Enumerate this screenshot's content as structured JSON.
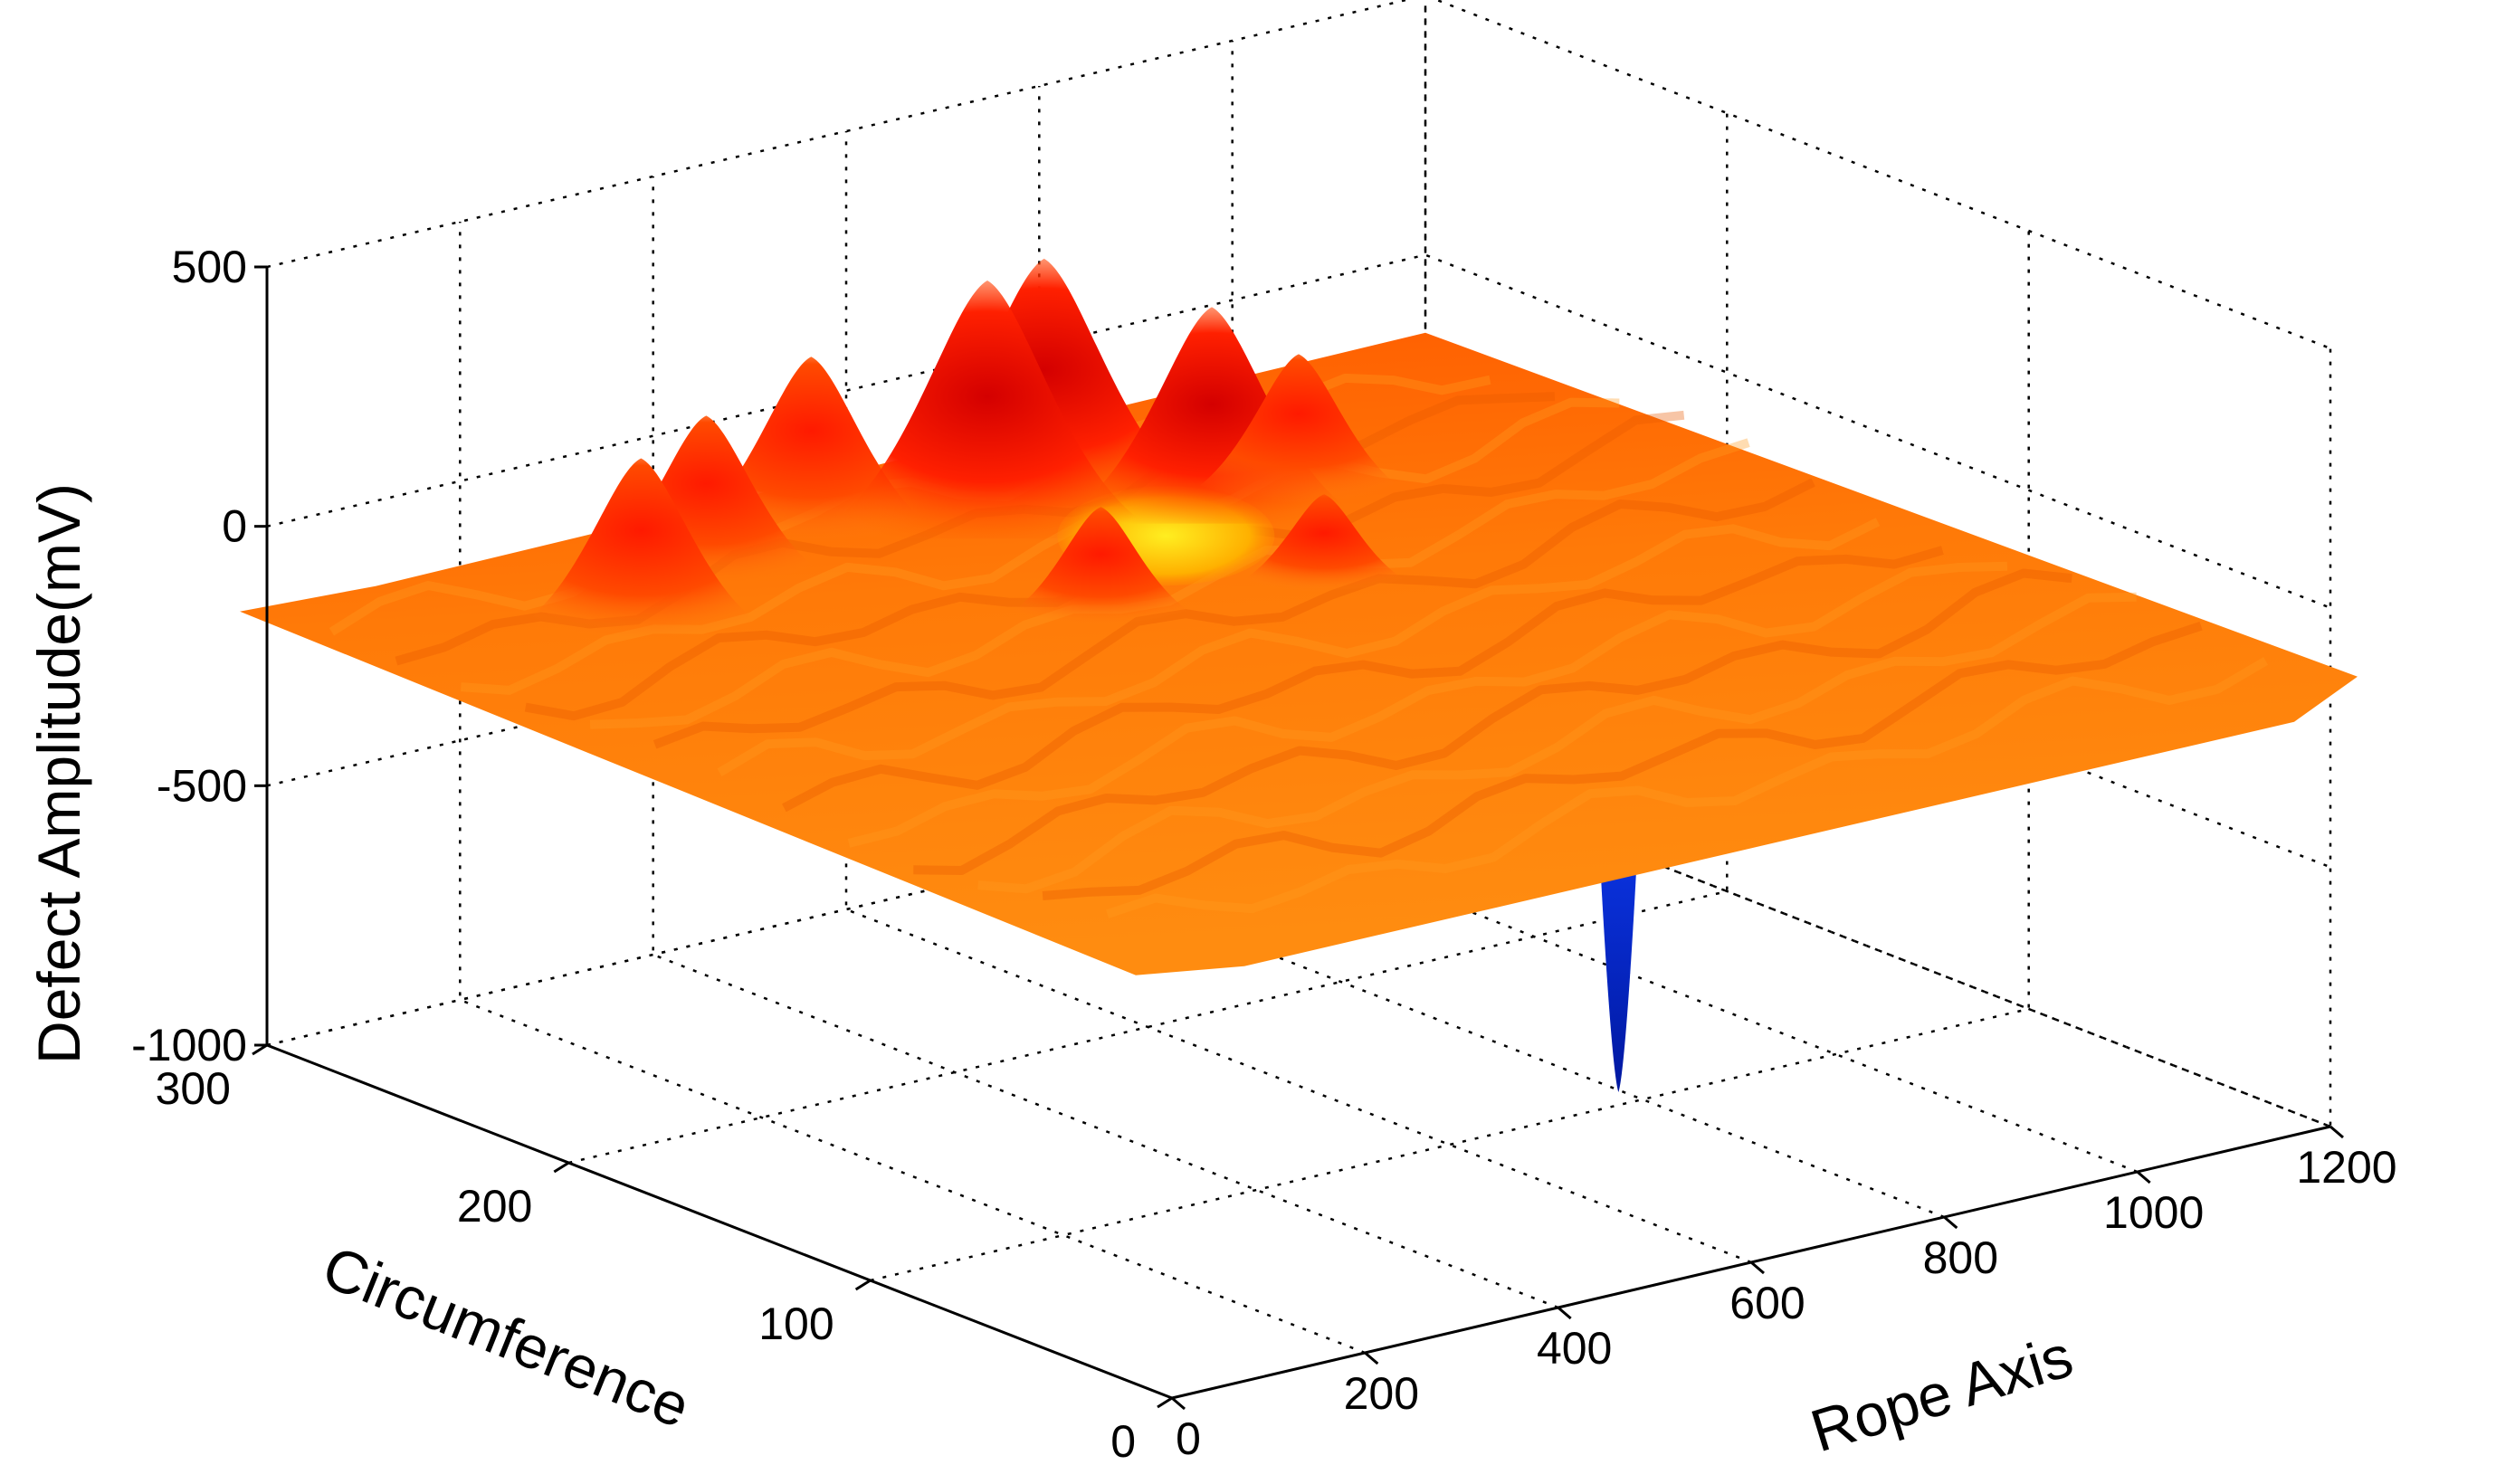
{
  "chart_data": {
    "type": "surface",
    "title": "",
    "xlabel": "Rope Axis",
    "ylabel": "Circumference",
    "zlabel": "Defect Amplitude(mV)",
    "xlim": [
      0,
      1200
    ],
    "ylim": [
      0,
      300
    ],
    "zlim": [
      -1000,
      500
    ],
    "xticks": [
      "0",
      "200",
      "400",
      "600",
      "800",
      "1000",
      "1200"
    ],
    "yticks": [
      "0",
      "100",
      "200",
      "300"
    ],
    "zticks": [
      "-1000",
      "-500",
      "0",
      "500"
    ],
    "grid": true,
    "colormap": "autumn-to-blue",
    "surface_base_mV": -150,
    "features": [
      {
        "kind": "peak",
        "x": 200,
        "y": 240,
        "z": 180
      },
      {
        "kind": "peak",
        "x": 330,
        "y": 260,
        "z": 160
      },
      {
        "kind": "peak",
        "x": 470,
        "y": 270,
        "z": 190
      },
      {
        "kind": "peak",
        "x": 590,
        "y": 250,
        "z": 330
      },
      {
        "kind": "peak",
        "x": 680,
        "y": 260,
        "z": 310
      },
      {
        "kind": "peak",
        "x": 760,
        "y": 230,
        "z": 250
      },
      {
        "kind": "peak",
        "x": 850,
        "y": 230,
        "z": 120
      },
      {
        "kind": "peak",
        "x": 520,
        "y": 190,
        "z": 60
      },
      {
        "kind": "peak",
        "x": 720,
        "y": 180,
        "z": 20
      },
      {
        "kind": "dip",
        "x": 650,
        "y": 60,
        "z": -830
      }
    ]
  }
}
